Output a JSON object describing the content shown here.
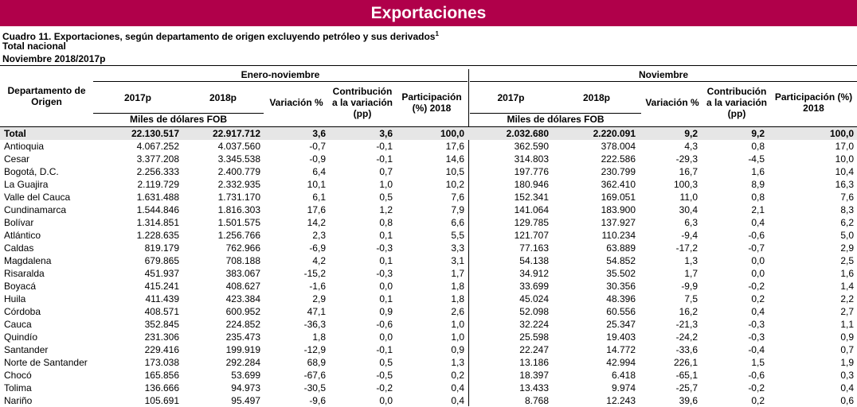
{
  "banner": {
    "title": "Exportaciones"
  },
  "caption": {
    "line1": "Cuadro 11. Exportaciones, según departamento de origen excluyendo petróleo y sus derivados",
    "line1_sup": "1",
    "line2": "Total nacional",
    "line3": "Noviembre 2018/2017p"
  },
  "header": {
    "dept": "Departamento de Origen",
    "group1": "Enero-noviembre",
    "group2": "Noviembre",
    "y2017": "2017p",
    "y2018": "2018p",
    "variacion": "Variación %",
    "contribucion": "Contribución a la variación (pp)",
    "participacion": "Participación (%) 2018",
    "participacion2": "Participación (%) 2018",
    "miles1": "Miles de dólares FOB",
    "miles2": "Miles de dólares FOB"
  },
  "rows": [
    [
      "Total",
      "22.130.517",
      "22.917.712",
      "3,6",
      "3,6",
      "100,0",
      "2.032.680",
      "2.220.091",
      "9,2",
      "9,2",
      "100,0"
    ],
    [
      "Antioquia",
      "4.067.252",
      "4.037.560",
      "-0,7",
      "-0,1",
      "17,6",
      "362.590",
      "378.004",
      "4,3",
      "0,8",
      "17,0"
    ],
    [
      "Cesar",
      "3.377.208",
      "3.345.538",
      "-0,9",
      "-0,1",
      "14,6",
      "314.803",
      "222.586",
      "-29,3",
      "-4,5",
      "10,0"
    ],
    [
      "Bogotá, D.C.",
      "2.256.333",
      "2.400.779",
      "6,4",
      "0,7",
      "10,5",
      "197.776",
      "230.799",
      "16,7",
      "1,6",
      "10,4"
    ],
    [
      "La Guajira",
      "2.119.729",
      "2.332.935",
      "10,1",
      "1,0",
      "10,2",
      "180.946",
      "362.410",
      "100,3",
      "8,9",
      "16,3"
    ],
    [
      "Valle del Cauca",
      "1.631.488",
      "1.731.170",
      "6,1",
      "0,5",
      "7,6",
      "152.341",
      "169.051",
      "11,0",
      "0,8",
      "7,6"
    ],
    [
      "Cundinamarca",
      "1.544.846",
      "1.816.303",
      "17,6",
      "1,2",
      "7,9",
      "141.064",
      "183.900",
      "30,4",
      "2,1",
      "8,3"
    ],
    [
      "Bolívar",
      "1.314.851",
      "1.501.575",
      "14,2",
      "0,8",
      "6,6",
      "129.785",
      "137.927",
      "6,3",
      "0,4",
      "6,2"
    ],
    [
      "Atlántico",
      "1.228.635",
      "1.256.766",
      "2,3",
      "0,1",
      "5,5",
      "121.707",
      "110.234",
      "-9,4",
      "-0,6",
      "5,0"
    ],
    [
      "Caldas",
      "819.179",
      "762.966",
      "-6,9",
      "-0,3",
      "3,3",
      "77.163",
      "63.889",
      "-17,2",
      "-0,7",
      "2,9"
    ],
    [
      "Magdalena",
      "679.865",
      "708.188",
      "4,2",
      "0,1",
      "3,1",
      "54.138",
      "54.852",
      "1,3",
      "0,0",
      "2,5"
    ],
    [
      "Risaralda",
      "451.937",
      "383.067",
      "-15,2",
      "-0,3",
      "1,7",
      "34.912",
      "35.502",
      "1,7",
      "0,0",
      "1,6"
    ],
    [
      "Boyacá",
      "415.241",
      "408.627",
      "-1,6",
      "0,0",
      "1,8",
      "33.699",
      "30.356",
      "-9,9",
      "-0,2",
      "1,4"
    ],
    [
      "Huila",
      "411.439",
      "423.384",
      "2,9",
      "0,1",
      "1,8",
      "45.024",
      "48.396",
      "7,5",
      "0,2",
      "2,2"
    ],
    [
      "Córdoba",
      "408.571",
      "600.952",
      "47,1",
      "0,9",
      "2,6",
      "52.098",
      "60.556",
      "16,2",
      "0,4",
      "2,7"
    ],
    [
      "Cauca",
      "352.845",
      "224.852",
      "-36,3",
      "-0,6",
      "1,0",
      "32.224",
      "25.347",
      "-21,3",
      "-0,3",
      "1,1"
    ],
    [
      "Quindío",
      "231.306",
      "235.473",
      "1,8",
      "0,0",
      "1,0",
      "25.598",
      "19.403",
      "-24,2",
      "-0,3",
      "0,9"
    ],
    [
      "Santander",
      "229.416",
      "199.919",
      "-12,9",
      "-0,1",
      "0,9",
      "22.247",
      "14.772",
      "-33,6",
      "-0,4",
      "0,7"
    ],
    [
      "Norte de Santander",
      "173.038",
      "292.284",
      "68,9",
      "0,5",
      "1,3",
      "13.186",
      "42.994",
      "226,1",
      "1,5",
      "1,9"
    ],
    [
      "Chocó",
      "165.856",
      "53.699",
      "-67,6",
      "-0,5",
      "0,2",
      "18.397",
      "6.418",
      "-65,1",
      "-0,6",
      "0,3"
    ],
    [
      "Tolima",
      "136.666",
      "94.973",
      "-30,5",
      "-0,2",
      "0,4",
      "13.433",
      "9.974",
      "-25,7",
      "-0,2",
      "0,4"
    ],
    [
      "Nariño",
      "105.691",
      "95.497",
      "-9,6",
      "0,0",
      "0,4",
      "8.768",
      "12.243",
      "39,6",
      "0,2",
      "0,6"
    ]
  ]
}
